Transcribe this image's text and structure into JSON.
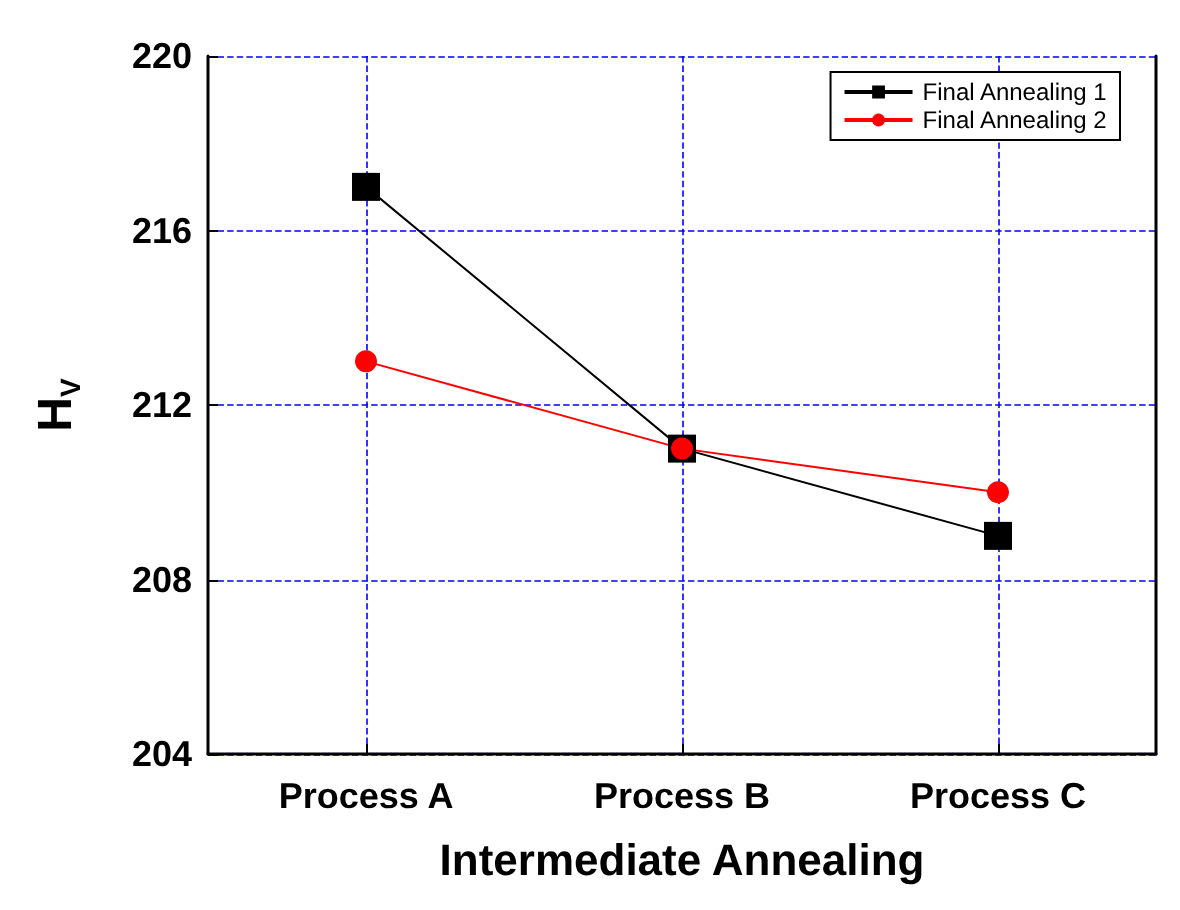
{
  "chart_data": {
    "type": "line",
    "xlabel": "Intermediate Annealing",
    "ylabel": "H$_{V}$",
    "categories": [
      "Process A",
      "Process B",
      "Process C"
    ],
    "series": [
      {
        "name": "Final Annealing 1",
        "color": "#000000",
        "values": [
          217,
          211,
          209
        ],
        "marker": "square"
      },
      {
        "name": "Final Annealing 2",
        "color": "#ff0000",
        "values": [
          213,
          211,
          210
        ],
        "marker": "circle"
      }
    ],
    "ylim": [
      204,
      220
    ],
    "yticks": [
      204,
      208,
      212,
      216,
      220
    ],
    "grid": true,
    "legend": "top right",
    "line_style": "solid"
  }
}
